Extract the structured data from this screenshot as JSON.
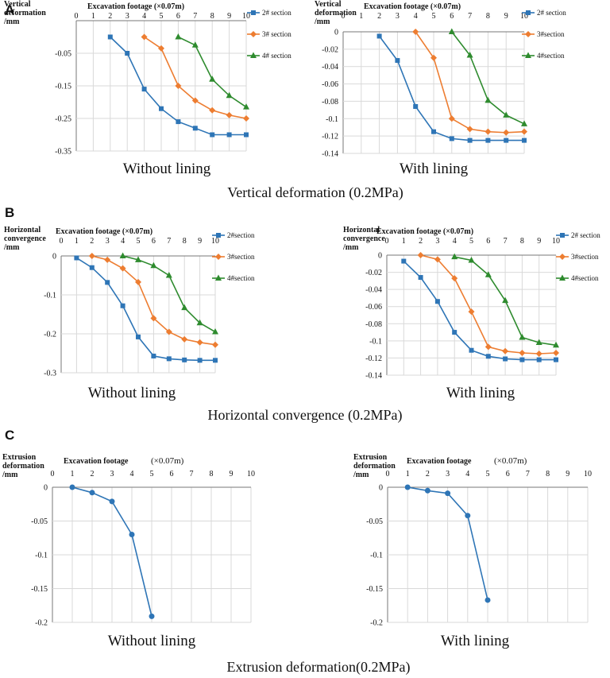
{
  "panels": [
    {
      "letter": "A",
      "caption": "Vertical deformation (0.2MPa)"
    },
    {
      "letter": "B",
      "caption": "Horizontal convergence (0.2MPa)"
    },
    {
      "letter": "C",
      "caption": "Extrusion deformation(0.2MPa)"
    }
  ],
  "colors": {
    "s2": "#2e75b6",
    "s3": "#ed7d31",
    "s4": "#2e8b2e",
    "grid": "#d9d9d9"
  },
  "chart_data": [
    {
      "id": "A1",
      "type": "line",
      "caption": "Without lining",
      "ylabel": [
        "Vertical",
        "deformation",
        "/mm"
      ],
      "xlabel": "Excavation footage (×0.07m)",
      "xlim": [
        0,
        10
      ],
      "xticks": [
        "0",
        "1",
        "2",
        "3",
        "4",
        "5",
        "6",
        "7",
        "8",
        "9",
        "10"
      ],
      "ylim": [
        -0.35,
        0.05
      ],
      "ylim_label_top": 0,
      "yticks": [
        {
          "v": -0.05,
          "t": "-0.05"
        },
        {
          "v": -0.15,
          "t": "-0.15"
        },
        {
          "v": -0.25,
          "t": "-0.25"
        },
        {
          "v": -0.35,
          "t": "-0.35"
        }
      ],
      "legend_style": "side",
      "series": [
        {
          "name": "2# section",
          "color": "s2",
          "marker": "square",
          "x": [
            2,
            3,
            4,
            5,
            6,
            7,
            8,
            9,
            10
          ],
          "values": [
            0,
            -0.05,
            -0.16,
            -0.22,
            -0.26,
            -0.28,
            -0.3,
            -0.3,
            -0.3
          ]
        },
        {
          "name": "3# section",
          "color": "s3",
          "marker": "diamond",
          "x": [
            4,
            5,
            6,
            7,
            8,
            9,
            10
          ],
          "values": [
            0,
            -0.035,
            -0.15,
            -0.195,
            -0.225,
            -0.24,
            -0.25
          ]
        },
        {
          "name": "4# section",
          "color": "s4",
          "marker": "triangle",
          "x": [
            6,
            7,
            8,
            9,
            10
          ],
          "values": [
            0,
            -0.025,
            -0.13,
            -0.18,
            -0.215
          ]
        }
      ]
    },
    {
      "id": "A2",
      "type": "line",
      "caption": "With lining",
      "ylabel": [
        "Vertical",
        "deformation",
        "/mm"
      ],
      "xlabel": "Excavation footage (×0.07m)",
      "xlim": [
        0,
        10
      ],
      "xticks": [
        "0",
        "1",
        "2",
        "3",
        "4",
        "5",
        "6",
        "7",
        "8",
        "9",
        "10"
      ],
      "ylim": [
        -0.14,
        0
      ],
      "yticks": [
        {
          "v": 0,
          "t": "0"
        },
        {
          "v": -0.02,
          "t": "-0.02"
        },
        {
          "v": -0.04,
          "t": "-0.04"
        },
        {
          "v": -0.06,
          "t": "-0.06"
        },
        {
          "v": -0.08,
          "t": "-0.08"
        },
        {
          "v": -0.1,
          "t": "-0.1"
        },
        {
          "v": -0.12,
          "t": "-0.12"
        },
        {
          "v": -0.14,
          "t": "-0.14"
        }
      ],
      "series": [
        {
          "name": "2# section",
          "color": "s2",
          "marker": "square",
          "x": [
            2,
            3,
            4,
            5,
            6,
            7,
            8,
            9,
            10
          ],
          "values": [
            -0.005,
            -0.033,
            -0.086,
            -0.115,
            -0.123,
            -0.125,
            -0.125,
            -0.125,
            -0.125
          ]
        },
        {
          "name": "3#section",
          "color": "s3",
          "marker": "diamond",
          "x": [
            4,
            5,
            6,
            7,
            8,
            9,
            10
          ],
          "values": [
            0,
            -0.03,
            -0.1,
            -0.112,
            -0.115,
            -0.116,
            -0.115
          ]
        },
        {
          "name": "4#section",
          "color": "s4",
          "marker": "triangle",
          "x": [
            6,
            7,
            8,
            9,
            10
          ],
          "values": [
            0,
            -0.027,
            -0.079,
            -0.096,
            -0.106
          ]
        }
      ]
    },
    {
      "id": "B1",
      "type": "line",
      "caption": "Without lining",
      "ylabel": [
        "Horizontal",
        "convergence",
        "/mm"
      ],
      "xlabel": "Excavation footage (×0.07m)",
      "xlim": [
        0,
        10
      ],
      "xticks": [
        "0",
        "1",
        "2",
        "3",
        "4",
        "5",
        "6",
        "7",
        "8",
        "9",
        "10"
      ],
      "ylim": [
        -0.3,
        0
      ],
      "yticks": [
        {
          "v": 0,
          "t": "0"
        },
        {
          "v": -0.1,
          "t": "-0.1"
        },
        {
          "v": -0.2,
          "t": "-0.2"
        },
        {
          "v": -0.3,
          "t": "-0.3"
        }
      ],
      "series": [
        {
          "name": "2#section",
          "color": "s2",
          "marker": "square",
          "x": [
            1,
            2,
            3,
            4,
            5,
            6,
            7,
            8,
            9,
            10
          ],
          "values": [
            -0.005,
            -0.03,
            -0.068,
            -0.128,
            -0.208,
            -0.257,
            -0.264,
            -0.267,
            -0.268,
            -0.268
          ]
        },
        {
          "name": "3#section",
          "color": "s3",
          "marker": "diamond",
          "x": [
            2,
            3,
            4,
            5,
            6,
            7,
            8,
            9,
            10
          ],
          "values": [
            0,
            -0.01,
            -0.032,
            -0.067,
            -0.16,
            -0.195,
            -0.214,
            -0.222,
            -0.228
          ]
        },
        {
          "name": "4#section",
          "color": "s4",
          "marker": "triangle",
          "x": [
            4,
            5,
            6,
            7,
            8,
            9,
            10
          ],
          "values": [
            0,
            -0.01,
            -0.025,
            -0.05,
            -0.133,
            -0.172,
            -0.195
          ]
        }
      ]
    },
    {
      "id": "B2",
      "type": "line",
      "caption": "With lining",
      "ylabel": [
        "Horizontal",
        "convergence",
        "/mm"
      ],
      "xlabel": "Excavation footage (×0.07m)",
      "xlim": [
        0,
        10
      ],
      "xticks": [
        "0",
        "1",
        "2",
        "3",
        "4",
        "5",
        "6",
        "7",
        "8",
        "9",
        "10"
      ],
      "ylim": [
        -0.14,
        0
      ],
      "yticks": [
        {
          "v": 0,
          "t": "0"
        },
        {
          "v": -0.02,
          "t": "-0.02"
        },
        {
          "v": -0.04,
          "t": "-0.04"
        },
        {
          "v": -0.06,
          "t": "-0.06"
        },
        {
          "v": -0.08,
          "t": "-0.08"
        },
        {
          "v": -0.1,
          "t": "-0.1"
        },
        {
          "v": -0.12,
          "t": "-0.12"
        },
        {
          "v": -0.14,
          "t": "-0.14"
        }
      ],
      "series": [
        {
          "name": "2# section",
          "color": "s2",
          "marker": "square",
          "x": [
            1,
            2,
            3,
            4,
            5,
            6,
            7,
            8,
            9,
            10
          ],
          "values": [
            -0.007,
            -0.026,
            -0.054,
            -0.09,
            -0.111,
            -0.118,
            -0.121,
            -0.122,
            -0.122,
            -0.122
          ]
        },
        {
          "name": "3#section",
          "color": "s3",
          "marker": "diamond",
          "x": [
            2,
            3,
            4,
            5,
            6,
            7,
            8,
            9,
            10
          ],
          "values": [
            0,
            -0.005,
            -0.027,
            -0.066,
            -0.107,
            -0.112,
            -0.114,
            -0.115,
            -0.114
          ]
        },
        {
          "name": "4#section",
          "color": "s4",
          "marker": "triangle",
          "x": [
            4,
            5,
            6,
            7,
            8,
            9,
            10
          ],
          "values": [
            -0.002,
            -0.006,
            -0.023,
            -0.053,
            -0.096,
            -0.102,
            -0.105
          ]
        }
      ]
    },
    {
      "id": "C1",
      "type": "line",
      "caption": "Without lining",
      "ylabel": [
        "Extrusion",
        "deformation",
        "/mm"
      ],
      "xlabel": "Excavation footage",
      "xlabel_suffix": "(×0.07m)",
      "xlim": [
        0,
        10
      ],
      "xticks": [
        "0",
        "1",
        "2",
        "3",
        "4",
        "5",
        "6",
        "7",
        "8",
        "9",
        "10"
      ],
      "ylim": [
        -0.2,
        0
      ],
      "yticks": [
        {
          "v": 0,
          "t": "0"
        },
        {
          "v": -0.05,
          "t": "-0.05"
        },
        {
          "v": -0.1,
          "t": "-0.1"
        },
        {
          "v": -0.15,
          "t": "-0.15"
        },
        {
          "v": -0.2,
          "t": "-0.2"
        }
      ],
      "series": [
        {
          "name": "",
          "color": "s2",
          "marker": "circle",
          "x": [
            1,
            2,
            3,
            4,
            5
          ],
          "values": [
            0,
            -0.008,
            -0.021,
            -0.07,
            -0.191
          ]
        }
      ]
    },
    {
      "id": "C2",
      "type": "line",
      "caption": "With lining",
      "ylabel": [
        "Extrusion",
        "deformation",
        "/mm"
      ],
      "xlabel": "Excavation footage",
      "xlabel_suffix": "(×0.07m)",
      "xlim": [
        0,
        10
      ],
      "xticks": [
        "0",
        "1",
        "2",
        "3",
        "4",
        "5",
        "6",
        "7",
        "8",
        "9",
        "10"
      ],
      "ylim": [
        -0.2,
        0
      ],
      "yticks": [
        {
          "v": 0,
          "t": "0"
        },
        {
          "v": -0.05,
          "t": "-0.05"
        },
        {
          "v": -0.1,
          "t": "-0.1"
        },
        {
          "v": -0.15,
          "t": "-0.15"
        },
        {
          "v": -0.2,
          "t": "-0.2"
        }
      ],
      "series": [
        {
          "name": "",
          "color": "s2",
          "marker": "circle",
          "x": [
            1,
            2,
            3,
            4,
            5
          ],
          "values": [
            0,
            -0.005,
            -0.009,
            -0.042,
            -0.167
          ]
        }
      ]
    }
  ]
}
